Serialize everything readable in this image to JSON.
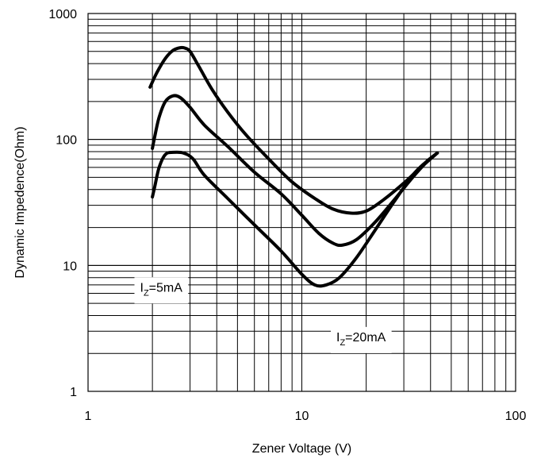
{
  "chart_data": {
    "type": "line",
    "xlabel": "Zener Voltage (V)",
    "ylabel": "Dynamic Impedence(Ohm)",
    "x_scale": "log",
    "y_scale": "log",
    "xlim": [
      1,
      100
    ],
    "ylim": [
      1,
      1000
    ],
    "x_ticks": [
      "1",
      "10",
      "100"
    ],
    "y_ticks": [
      "1",
      "10",
      "100",
      "1000"
    ],
    "grid": true,
    "series": [
      {
        "x": [
          1.95,
          2.1,
          2.3,
          2.5,
          2.7,
          2.85,
          3.0,
          3.3,
          3.8,
          4.5,
          5.5,
          7.0,
          9.0,
          11.5,
          14.0,
          17.0,
          20.0,
          24.0,
          30.0,
          36.0,
          43.0
        ],
        "values": [
          260,
          340,
          440,
          510,
          535,
          530,
          500,
          380,
          250,
          165,
          108,
          70,
          46,
          34,
          28,
          26,
          27,
          33,
          45,
          60,
          78
        ]
      },
      {
        "x": [
          2.0,
          2.05,
          2.15,
          2.3,
          2.5,
          2.7,
          3.0,
          3.5,
          4.5,
          6.0,
          8.0,
          10.0,
          12.0,
          14.0,
          15.5,
          18.0,
          22.0,
          27.0,
          33.0,
          38.0,
          43.0
        ],
        "values": [
          85,
          105,
          150,
          200,
          222,
          215,
          180,
          130,
          88,
          55,
          37,
          25,
          18,
          15,
          14.5,
          16,
          22,
          33,
          50,
          65,
          78
        ]
      },
      {
        "x": [
          2.0,
          2.05,
          2.15,
          2.3,
          2.5,
          2.8,
          3.1,
          3.5,
          4.5,
          6.0,
          8.0,
          10.0,
          11.5,
          13.0,
          15.0,
          18.0,
          22.0,
          27.0,
          33.0,
          38.0,
          43.0
        ],
        "values": [
          35,
          42,
          60,
          76,
          79,
          78,
          70,
          52,
          34,
          21,
          13,
          8.5,
          7.0,
          7.0,
          8.0,
          11.5,
          19,
          32,
          52,
          66,
          78
        ]
      }
    ],
    "annotations": [
      {
        "prefix": "I",
        "sub": "Z",
        "suffix": "=5mA",
        "x": 1.75,
        "y": 6.2
      },
      {
        "prefix": "I",
        "sub": "Z",
        "suffix": "=20mA",
        "x": 14.5,
        "y": 2.5
      }
    ]
  }
}
